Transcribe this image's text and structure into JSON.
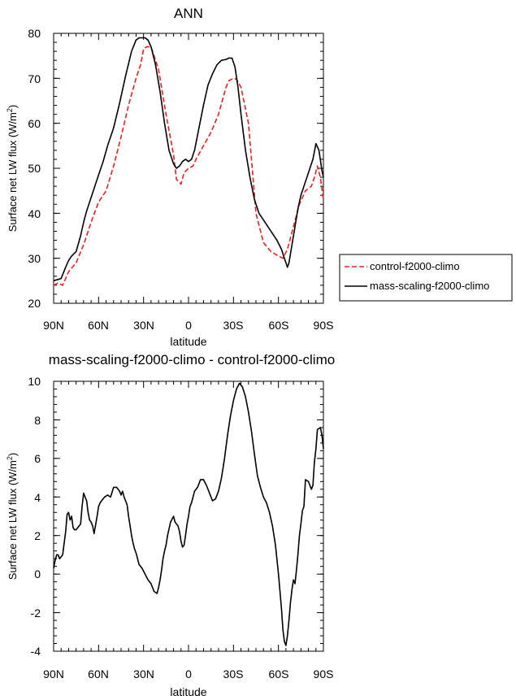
{
  "chart_data": [
    {
      "type": "line",
      "title": "ANN",
      "xlabel": "latitude",
      "ylabel": "Surface net LW flux",
      "ylabel_unit_prefix": "(W/m",
      "ylabel_unit_exp": "2",
      "ylabel_unit_suffix": ")",
      "xlim": [
        90,
        -90
      ],
      "ylim": [
        20,
        80
      ],
      "x_ticks": [
        90,
        60,
        30,
        0,
        -30,
        -60,
        -90
      ],
      "x_tick_labels": [
        "90N",
        "60N",
        "30N",
        "0",
        "30S",
        "60S",
        "90S"
      ],
      "y_ticks": [
        20,
        30,
        40,
        50,
        60,
        70,
        80
      ],
      "y_tick_labels": [
        "20",
        "30",
        "40",
        "50",
        "60",
        "70",
        "80"
      ],
      "series": [
        {
          "name": "control-f2000-climo",
          "color": "#e8201e",
          "dash": "dashed",
          "x": [
            90,
            87,
            84,
            80,
            75,
            70,
            65,
            60,
            55,
            50,
            45,
            40,
            35,
            32,
            30,
            28,
            25,
            20,
            15,
            10,
            8,
            5,
            3,
            0,
            -3,
            -5,
            -10,
            -15,
            -20,
            -25,
            -27,
            -30,
            -32,
            -35,
            -40,
            -45,
            -50,
            -55,
            -60,
            -63,
            -66,
            -70,
            -74,
            -78,
            -82,
            -84,
            -86,
            -88,
            -90
          ],
          "y": [
            24,
            24.5,
            24,
            27,
            29,
            33,
            38,
            42.5,
            45,
            50.5,
            57,
            64,
            70,
            73,
            76.5,
            77,
            77,
            72,
            62,
            53,
            47.5,
            46.5,
            49,
            50,
            50.5,
            52,
            55,
            58,
            62,
            68,
            69.5,
            70,
            69.8,
            68,
            60,
            40,
            33.5,
            31.5,
            30.5,
            30,
            32,
            37,
            42,
            45,
            46,
            48,
            50.5,
            48,
            43
          ]
        },
        {
          "name": "mass-scaling-f2000-climo",
          "color": "#000000",
          "dash": "solid",
          "x": [
            90,
            87,
            85,
            82,
            80,
            78,
            75,
            72,
            70,
            68,
            65,
            62,
            60,
            57,
            54,
            50,
            46,
            42,
            38,
            35,
            33,
            31,
            29,
            27,
            25,
            22,
            19,
            16,
            13,
            10,
            8,
            6,
            4,
            2,
            0,
            -2,
            -4,
            -7,
            -10,
            -13,
            -16,
            -19,
            -22,
            -25,
            -27,
            -29,
            -31,
            -33,
            -35,
            -38,
            -41,
            -44,
            -47,
            -50,
            -53,
            -56,
            -59,
            -62,
            -64,
            -65,
            -66,
            -67,
            -69,
            -71,
            -73,
            -75,
            -77,
            -79,
            -81,
            -83,
            -85,
            -87,
            -89,
            -90
          ],
          "y": [
            25,
            25.3,
            25.5,
            28,
            29.5,
            30.5,
            31.5,
            35,
            38,
            40.5,
            43.5,
            46.5,
            48.5,
            51.5,
            55,
            59,
            64.5,
            70.5,
            76,
            78.5,
            79,
            79,
            79,
            78.5,
            77,
            73,
            67,
            60,
            54,
            51,
            50,
            50.5,
            51.5,
            52,
            51.5,
            52,
            54,
            59,
            64,
            68.5,
            71,
            73,
            74,
            74.2,
            74.5,
            74.5,
            72.5,
            68,
            62,
            54,
            48,
            43,
            40,
            38.5,
            37,
            35.5,
            34,
            32,
            30,
            29,
            28,
            29,
            33,
            37,
            41,
            44,
            46,
            48,
            50,
            52,
            55.5,
            54,
            49.5,
            48
          ]
        }
      ],
      "legend": {
        "entries": [
          "control-f2000-climo",
          "mass-scaling-f2000-climo"
        ],
        "placement": "right"
      }
    },
    {
      "type": "line",
      "title": "mass-scaling-f2000-climo - control-f2000-climo",
      "xlabel": "latitude",
      "ylabel": "Surface net LW flux",
      "ylabel_unit_prefix": "(W/m",
      "ylabel_unit_exp": "2",
      "ylabel_unit_suffix": ")",
      "xlim": [
        90,
        -90
      ],
      "ylim": [
        -4,
        10
      ],
      "x_ticks": [
        90,
        60,
        30,
        0,
        -30,
        -60,
        -90
      ],
      "x_tick_labels": [
        "90N",
        "60N",
        "30N",
        "0",
        "30S",
        "60S",
        "90S"
      ],
      "y_ticks": [
        -4,
        -2,
        0,
        2,
        4,
        6,
        8,
        10
      ],
      "y_tick_labels": [
        "-4",
        "-2",
        "0",
        "2",
        "4",
        "6",
        "8",
        "10"
      ],
      "series": [
        {
          "name": "mass-scaling-f2000-climo - control-f2000-climo",
          "color": "#000000",
          "dash": "solid",
          "x": [
            90,
            89,
            88,
            87,
            86,
            84,
            82,
            81,
            80,
            79,
            78,
            77,
            76,
            75,
            74,
            72,
            71,
            70,
            69,
            68,
            67,
            66,
            65,
            64,
            63,
            61,
            60,
            59,
            58,
            56,
            54,
            52,
            50,
            48,
            46,
            45,
            44,
            43,
            42,
            41,
            40,
            39,
            38,
            37,
            36,
            35,
            34,
            33,
            31,
            29,
            27,
            25,
            23,
            21,
            20,
            19,
            18,
            17,
            16,
            15,
            14,
            12,
            10,
            9,
            8,
            7,
            6,
            5,
            4,
            3,
            2,
            1,
            0,
            -1,
            -2,
            -4,
            -6,
            -8,
            -10,
            -12,
            -14,
            -16,
            -18,
            -20,
            -22,
            -24,
            -26,
            -28,
            -30,
            -32,
            -34,
            -36,
            -38,
            -40,
            -42,
            -44,
            -46,
            -48,
            -50,
            -52,
            -54,
            -56,
            -58,
            -60,
            -62,
            -63,
            -64,
            -65,
            -66,
            -67,
            -68,
            -69,
            -70,
            -71,
            -72,
            -73,
            -74,
            -75,
            -76,
            -77,
            -78,
            -80,
            -82,
            -83,
            -84,
            -85,
            -86,
            -88,
            -89,
            -90
          ],
          "y": [
            0.3,
            0.7,
            1,
            1,
            0.8,
            1,
            2.2,
            3.1,
            3.2,
            2.8,
            3,
            2.4,
            2.3,
            2.3,
            2.4,
            2.6,
            3.5,
            4.2,
            4,
            3.8,
            3.2,
            2.8,
            2.7,
            2.5,
            2.1,
            3,
            3.5,
            3.7,
            3.8,
            4,
            4.1,
            4,
            4.5,
            4.5,
            4.3,
            4.1,
            4.3,
            4,
            3.8,
            3.6,
            3,
            2.5,
            2,
            1.6,
            1.3,
            1.1,
            0.8,
            0.5,
            0.3,
            0,
            -0.3,
            -0.5,
            -0.9,
            -1,
            -0.7,
            -0.3,
            0.2,
            0.8,
            1.2,
            1.5,
            2,
            2.7,
            3,
            2.7,
            2.6,
            2.5,
            2.2,
            1.7,
            1.4,
            1.5,
            2,
            2.6,
            3,
            3.5,
            3.7,
            4.3,
            4.5,
            4.9,
            4.9,
            4.6,
            4.2,
            3.8,
            3.9,
            4.3,
            5,
            6,
            7.2,
            8.2,
            9,
            9.6,
            9.9,
            9.7,
            9.2,
            8.4,
            7.4,
            6.2,
            5.1,
            4.5,
            4,
            3.7,
            3.2,
            2.5,
            1.5,
            0,
            -1.8,
            -2.9,
            -3.5,
            -3.7,
            -3.2,
            -2.4,
            -1.5,
            -0.8,
            -0.3,
            -0.5,
            0.2,
            1,
            2,
            2.6,
            3.3,
            3.5,
            4.9,
            4.8,
            4.4,
            4.6,
            5.8,
            6.5,
            7.5,
            7.6,
            7.2,
            6.5
          ]
        }
      ]
    }
  ]
}
